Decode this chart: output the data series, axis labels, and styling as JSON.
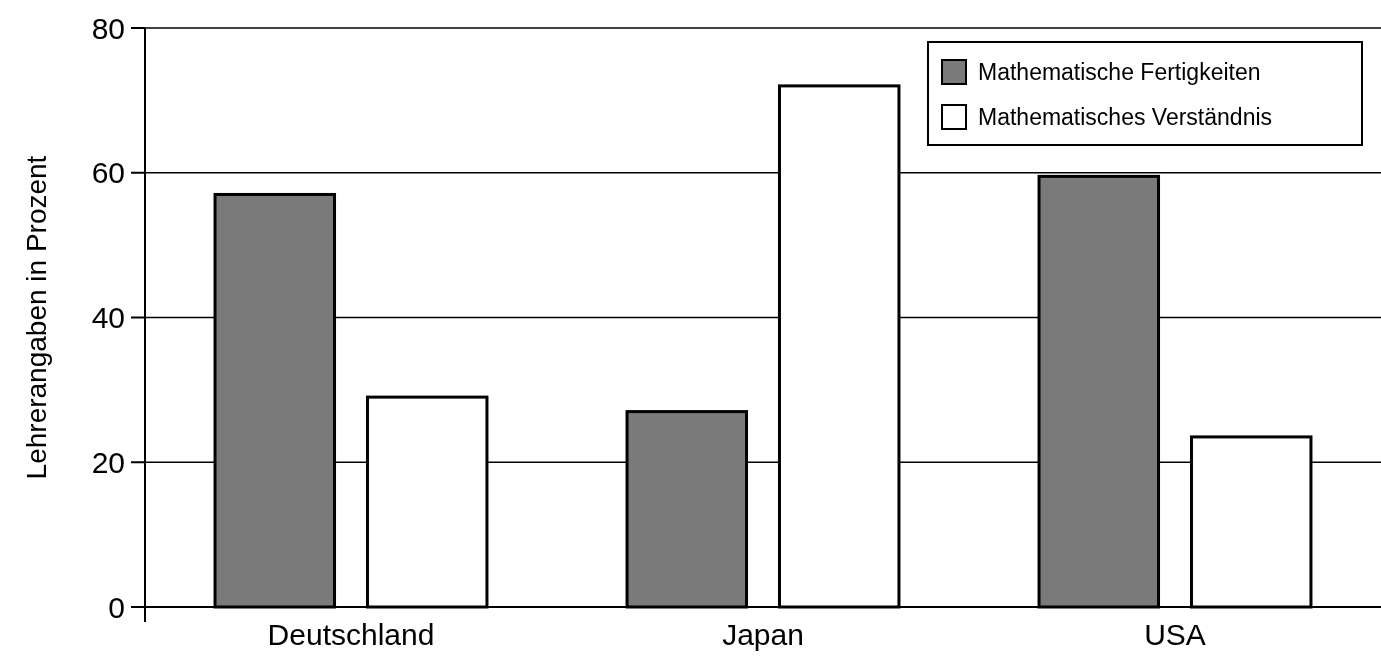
{
  "chart_data": {
    "type": "bar",
    "ylabel": "Lehrerangaben in Prozent",
    "categories": [
      "Deutschland",
      "Japan",
      "USA"
    ],
    "series": [
      {
        "name": "Mathematische Fertigkeiten",
        "color": "#7a7a7a",
        "values": [
          57,
          27,
          59.5
        ]
      },
      {
        "name": "Mathematisches Verständnis",
        "color": "#ffffff",
        "values": [
          29,
          72,
          23.5
        ]
      }
    ],
    "ylim": [
      0,
      80
    ],
    "yticks": [
      0,
      20,
      40,
      60,
      80
    ],
    "grid": "y",
    "legend": "top right"
  }
}
